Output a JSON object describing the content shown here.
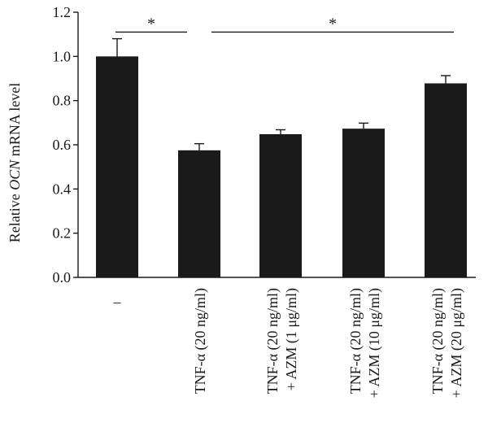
{
  "chart_data": {
    "type": "bar",
    "title": "",
    "xlabel": "",
    "ylabel": {
      "prefix": "Relative ",
      "gene": "OCN",
      "suffix": " mRNA level"
    },
    "ylim": [
      0,
      1.2
    ],
    "yticks": [
      "0.0",
      "0.2",
      "0.4",
      "0.6",
      "0.8",
      "1.0",
      "1.2"
    ],
    "categories": [
      {
        "line1": "–",
        "line2": ""
      },
      {
        "line1": "TNF-α (20 ng/ml)",
        "line2": ""
      },
      {
        "line1": "TNF-α (20 ng/ml)",
        "line2": "+ AZM (1 μg/ml)"
      },
      {
        "line1": "TNF-α (20 ng/ml)",
        "line2": "+ AZM (10 μg/ml)"
      },
      {
        "line1": "TNF-α (20 ng/ml)",
        "line2": "+ AZM (20 μg/ml)"
      }
    ],
    "values": [
      1.0,
      0.575,
      0.648,
      0.673,
      0.878
    ],
    "errors": [
      0.08,
      0.03,
      0.02,
      0.025,
      0.035
    ],
    "bar_color": "#1a1a1a",
    "significance": [
      {
        "from": 0,
        "to": 1,
        "y": 1.11,
        "label": "*"
      },
      {
        "from": 1,
        "to": 4,
        "y": 1.11,
        "label": "*"
      }
    ]
  }
}
